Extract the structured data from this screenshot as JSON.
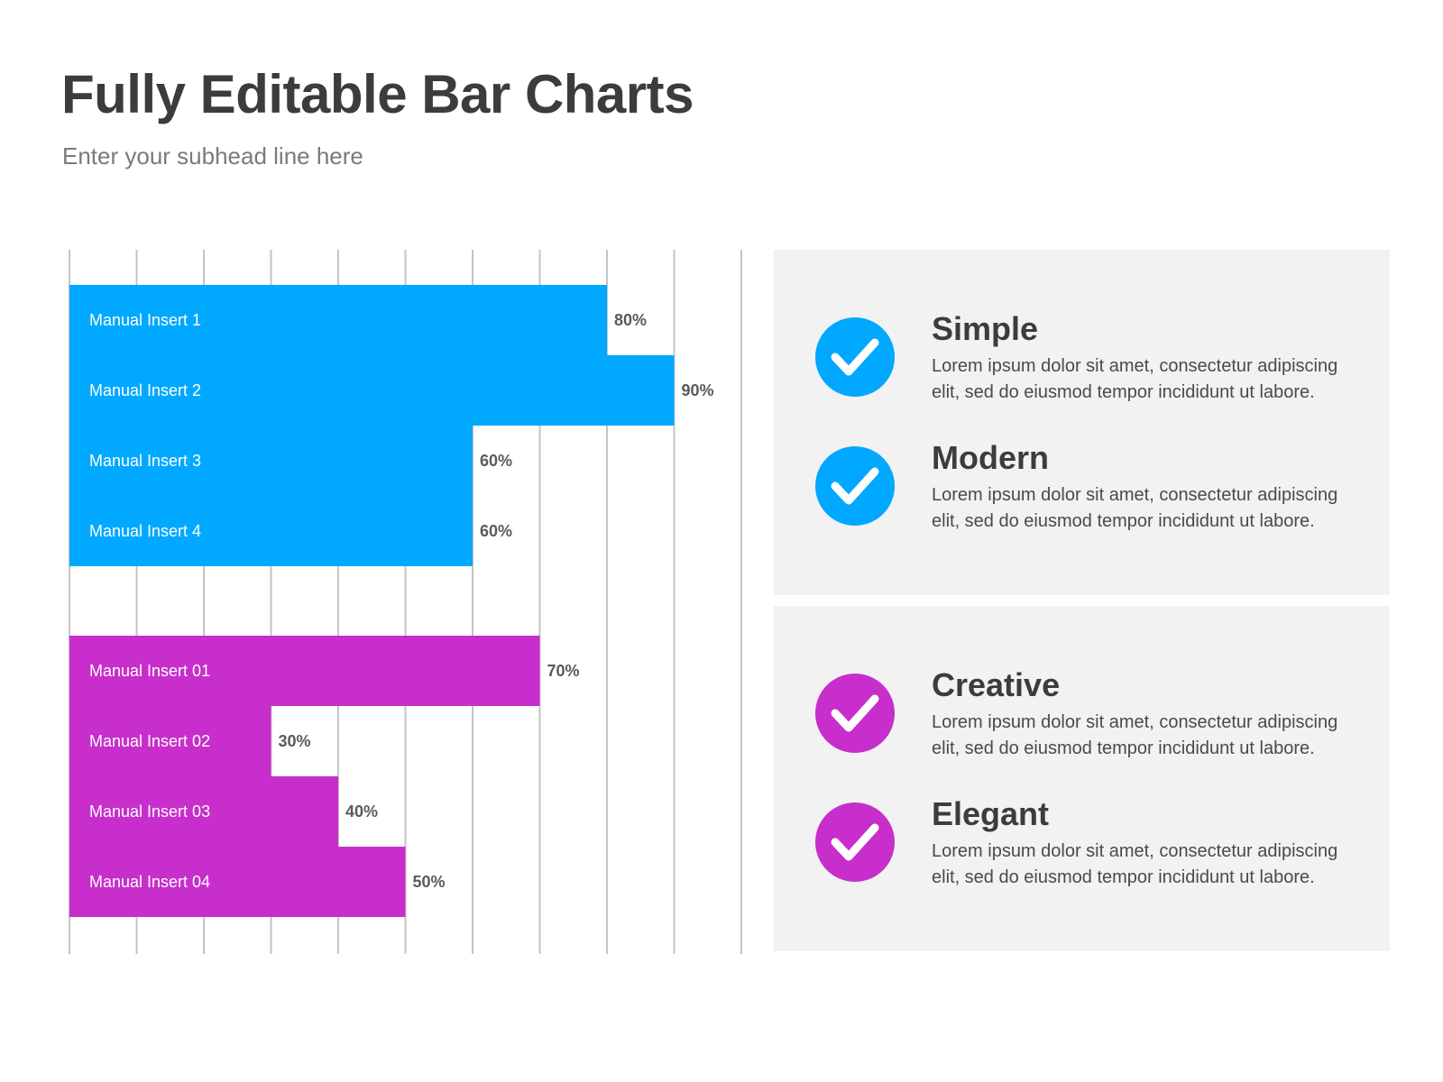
{
  "header": {
    "title": "Fully Editable Bar Charts",
    "subtitle": "Enter your subhead line here"
  },
  "chart_data": {
    "type": "bar",
    "orientation": "horizontal",
    "xlim": [
      0,
      100
    ],
    "grid": true,
    "groups": [
      {
        "color": "#00a8ff",
        "categories": [
          "Manual Insert 1",
          "Manual Insert 2",
          "Manual Insert 3",
          "Manual Insert 4"
        ],
        "values": [
          80,
          90,
          60,
          60
        ],
        "value_labels": [
          "80%",
          "90%",
          "60%",
          "60%"
        ]
      },
      {
        "color": "#c72ecb",
        "categories": [
          "Manual Insert 01",
          "Manual Insert 02",
          "Manual Insert 03",
          "Manual Insert 04"
        ],
        "values": [
          70,
          30,
          40,
          50
        ],
        "value_labels": [
          "70%",
          "30%",
          "40%",
          "50%"
        ]
      }
    ]
  },
  "features": [
    {
      "title": "Simple",
      "text": "Lorem ipsum dolor sit amet, consectetur adipiscing elit, sed do eiusmod tempor incididunt ut labore.",
      "icon": "check-circle-icon",
      "color": "#00a8ff"
    },
    {
      "title": "Modern",
      "text": "Lorem ipsum dolor sit amet, consectetur adipiscing elit, sed do eiusmod tempor incididunt ut labore.",
      "icon": "check-circle-icon",
      "color": "#00a8ff"
    },
    {
      "title": "Creative",
      "text": "Lorem ipsum dolor sit amet, consectetur adipiscing elit, sed do eiusmod tempor incididunt ut labore.",
      "icon": "check-circle-icon",
      "color": "#c72ecb"
    },
    {
      "title": "Elegant",
      "text": "Lorem ipsum dolor sit amet, consectetur adipiscing elit, sed do eiusmod tempor incididunt ut labore.",
      "icon": "check-circle-icon",
      "color": "#c72ecb"
    }
  ]
}
